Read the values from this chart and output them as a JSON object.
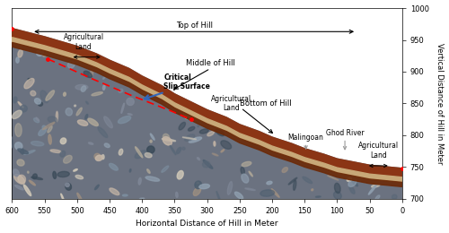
{
  "xlabel": "Horizontal Distance of Hill in Meter",
  "ylabel": "Vertical Distance of Hill in Meter",
  "xlim": [
    600,
    0
  ],
  "ylim": [
    700,
    1000
  ],
  "xticks": [
    600,
    550,
    500,
    450,
    400,
    350,
    300,
    250,
    200,
    150,
    100,
    50,
    0
  ],
  "yticks": [
    700,
    750,
    800,
    850,
    900,
    950,
    1000
  ],
  "hill_surface_x": [
    600,
    550,
    500,
    470,
    450,
    420,
    400,
    370,
    350,
    320,
    300,
    270,
    250,
    220,
    200,
    170,
    150,
    120,
    100,
    70,
    50,
    20,
    0
  ],
  "hill_surface_y": [
    968,
    955,
    940,
    928,
    918,
    905,
    893,
    878,
    865,
    850,
    840,
    828,
    817,
    806,
    797,
    787,
    779,
    770,
    763,
    757,
    753,
    750,
    748
  ],
  "slip_x": [
    545,
    510,
    475,
    445,
    415,
    385,
    355,
    325
  ],
  "slip_y": [
    920,
    904,
    888,
    875,
    862,
    850,
    838,
    825
  ],
  "rock_color": "#6b7280",
  "soil_color": "#8B3515",
  "tan_color": "#c8a878",
  "dark_soil_color": "#6b2a08",
  "bg_color": "#ffffff"
}
